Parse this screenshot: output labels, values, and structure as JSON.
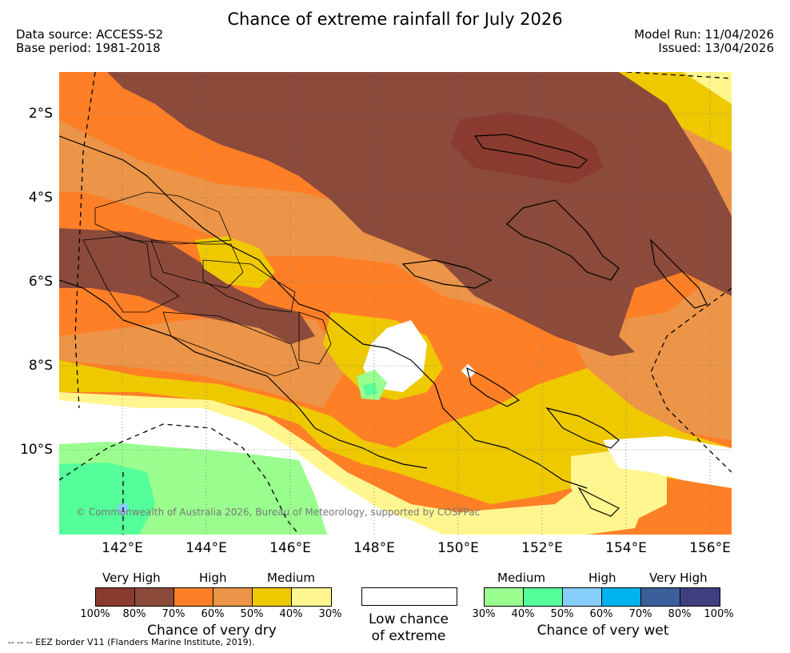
{
  "title": "Chance of extreme rainfall for July 2026",
  "header": {
    "data_source": "Data source: ACCESS-S2",
    "base_period": "Base period: 1981-2018",
    "model_run": "Model Run: 11/04/2026",
    "issued": "Issued: 13/04/2026"
  },
  "map": {
    "lat_labels": [
      "2°S",
      "4°S",
      "6°S",
      "8°S",
      "10°S"
    ],
    "lon_labels": [
      "142°E",
      "144°E",
      "146°E",
      "148°E",
      "150°E",
      "152°E",
      "154°E",
      "156°E"
    ],
    "copyright": "© Commonwealth of Australia 2026, Bureau of Meteorology, supported by COSPPac",
    "colors": {
      "dry_very_high_1": "#8b3a2f",
      "dry_very_high_2": "#8b4a3a",
      "dry_high_1": "#ff7f27",
      "dry_high_2": "#ec9447",
      "dry_medium_1": "#eec900",
      "dry_medium_2": "#fff68f",
      "low": "#ffffff",
      "wet_medium_1": "#9aff8f",
      "wet_medium_2": "#55ff9a",
      "wet_high_1": "#87cefa",
      "wet_high_2": "#00b2ee",
      "wet_very_high_1": "#3a5f9b",
      "wet_very_high_2": "#3f3f7f"
    }
  },
  "legend": {
    "dry": {
      "headers": [
        "Very High",
        "High",
        "Medium"
      ],
      "percents": [
        "100%",
        "80%",
        "70%",
        "60%",
        "50%",
        "40%",
        "30%"
      ],
      "caption": "Chance of very dry"
    },
    "low": {
      "caption_line1": "Low chance",
      "caption_line2": "of extreme"
    },
    "wet": {
      "headers": [
        "Medium",
        "High",
        "Very High"
      ],
      "percents": [
        "30%",
        "40%",
        "50%",
        "60%",
        "70%",
        "80%",
        "100%"
      ],
      "caption": "Chance of very wet"
    }
  },
  "footnote": "--  --  -- EEZ border V11 (Flanders Marine Institute, 2019)."
}
